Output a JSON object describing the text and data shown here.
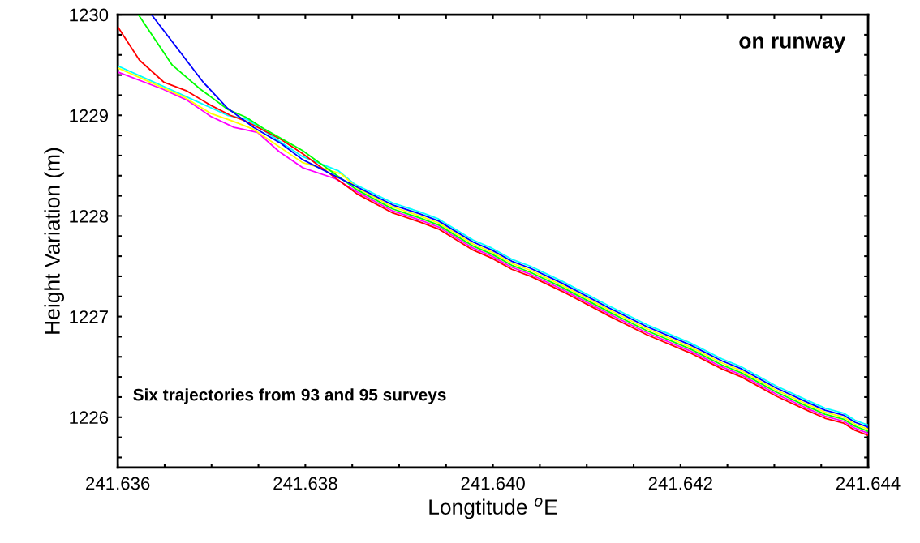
{
  "chart_data": {
    "type": "line",
    "xlabel": "Longtitude $^{o}$E",
    "ylabel": "Height Variation (m)",
    "annotations": [
      "on runway",
      "Six trajectories from 93 and 95 surveys"
    ],
    "xlim": [
      241.636,
      241.644
    ],
    "ylim": [
      1225.5,
      1230
    ],
    "xticks": [
      241.636,
      {
        "value": 241.6365,
        "label": null
      },
      {
        "value": 241.637,
        "label": null
      },
      {
        "value": 241.6375,
        "label": null
      },
      241.638,
      {
        "value": 241.6385,
        "label": null
      },
      {
        "value": 241.639,
        "label": null
      },
      {
        "value": 241.6395,
        "label": null
      },
      {
        "value": 241.64,
        "label": "241.640"
      },
      {
        "value": 241.6405,
        "label": null
      },
      {
        "value": 241.641,
        "label": null
      },
      {
        "value": 241.6415,
        "label": null
      },
      241.642,
      {
        "value": 241.6425,
        "label": null
      },
      {
        "value": 241.643,
        "label": null
      },
      {
        "value": 241.6435,
        "label": null
      },
      241.644
    ],
    "yticks": [
      {
        "value": 1225.6,
        "label": null
      },
      {
        "value": 1225.8,
        "label": null
      },
      1226,
      {
        "value": 1226.2,
        "label": null
      },
      {
        "value": 1226.4,
        "label": null
      },
      {
        "value": 1226.6,
        "label": null
      },
      {
        "value": 1226.8,
        "label": null
      },
      1227,
      {
        "value": 1227.2,
        "label": null
      },
      {
        "value": 1227.4,
        "label": null
      },
      {
        "value": 1227.6,
        "label": null
      },
      {
        "value": 1227.8,
        "label": null
      },
      1228,
      {
        "value": 1228.2,
        "label": null
      },
      {
        "value": 1228.4,
        "label": null
      },
      {
        "value": 1228.6,
        "label": null
      },
      {
        "value": 1228.8,
        "label": null
      },
      1229,
      {
        "value": 1229.2,
        "label": null
      },
      {
        "value": 1229.4,
        "label": null
      },
      {
        "value": 1229.6,
        "label": null
      },
      {
        "value": 1229.8,
        "label": null
      },
      1230
    ],
    "grid": false,
    "marker": "none",
    "line_style": "solid",
    "series": [
      {
        "color": "#0000ff",
        "x": [
          241.63636,
          241.63691,
          241.63717,
          241.63745,
          241.63774,
          241.63797,
          241.63893,
          241.63922,
          241.63942,
          241.63979,
          241.63999,
          241.6402,
          241.6404,
          241.64074,
          241.64123,
          241.64164,
          241.6421,
          241.64244,
          241.64265,
          241.64302,
          241.64337,
          241.64354,
          241.64374,
          241.64386,
          241.644
        ],
        "values": [
          1230.0,
          1229.33,
          1229.07,
          1228.88,
          1228.72,
          1228.56,
          1228.11,
          1228.02,
          1227.95,
          1227.74,
          1227.66,
          1227.55,
          1227.48,
          1227.33,
          1227.09,
          1226.9,
          1226.72,
          1226.56,
          1226.48,
          1226.29,
          1226.14,
          1226.07,
          1226.02,
          1225.95,
          1225.9
        ]
      },
      {
        "color": "#00ff00",
        "x": [
          241.63622,
          241.63658,
          241.63688,
          241.63717,
          241.63737,
          241.63757,
          241.63797,
          241.63855,
          241.63893,
          241.63922,
          241.63942,
          241.63979,
          241.63999,
          241.6402,
          241.6404,
          241.64074,
          241.64123,
          241.64164,
          241.6421,
          241.64244,
          241.64265,
          241.64302,
          241.64337,
          241.64354,
          241.64374,
          241.64386,
          241.644
        ],
        "values": [
          1230.0,
          1229.5,
          1229.26,
          1229.06,
          1228.98,
          1228.86,
          1228.65,
          1228.26,
          1228.07,
          1227.98,
          1227.91,
          1227.7,
          1227.62,
          1227.51,
          1227.44,
          1227.29,
          1227.05,
          1226.86,
          1226.68,
          1226.52,
          1226.44,
          1226.25,
          1226.1,
          1226.03,
          1225.98,
          1225.91,
          1225.86
        ]
      },
      {
        "color": "#ff0000",
        "x": [
          241.636,
          241.63623,
          241.63649,
          241.63674,
          241.63697,
          241.6372,
          241.63737,
          241.63774,
          241.63797,
          241.63855,
          241.63893,
          241.63922,
          241.63942,
          241.63979,
          241.63999,
          241.6402,
          241.6404,
          241.64074,
          241.64123,
          241.64164,
          241.6421,
          241.64244,
          241.64265,
          241.64302,
          241.64337,
          241.64354,
          241.64374,
          241.64386,
          241.644
        ],
        "values": [
          1229.88,
          1229.55,
          1229.33,
          1229.24,
          1229.11,
          1229.0,
          1228.94,
          1228.76,
          1228.62,
          1228.22,
          1228.03,
          1227.94,
          1227.87,
          1227.66,
          1227.58,
          1227.47,
          1227.4,
          1227.25,
          1227.01,
          1226.82,
          1226.64,
          1226.48,
          1226.4,
          1226.21,
          1226.06,
          1225.99,
          1225.94,
          1225.87,
          1225.82
        ]
      },
      {
        "color": "#ffff00",
        "x": [
          241.636,
          241.63671,
          241.63699,
          241.63723,
          241.63745,
          241.63797,
          241.63838,
          241.63855,
          241.63893,
          241.63922,
          241.63942,
          241.63979,
          241.63999,
          241.6402,
          241.6404,
          241.64074,
          241.64123,
          241.64164,
          241.6421,
          241.64244,
          241.64265,
          241.64302,
          241.64337,
          241.64354,
          241.64374,
          241.64386,
          241.644
        ],
        "values": [
          1229.47,
          1229.18,
          1229.02,
          1228.94,
          1228.86,
          1228.53,
          1228.42,
          1228.28,
          1228.09,
          1228.0,
          1227.93,
          1227.72,
          1227.64,
          1227.53,
          1227.46,
          1227.31,
          1227.07,
          1226.88,
          1226.7,
          1226.54,
          1226.46,
          1226.27,
          1226.12,
          1226.05,
          1226.0,
          1225.93,
          1225.88
        ]
      },
      {
        "color": "#ff00ff",
        "x": [
          241.636,
          241.63648,
          241.63674,
          241.63699,
          241.63724,
          241.63749,
          241.63772,
          241.63797,
          241.63832,
          241.63855,
          241.63893,
          241.63922,
          241.63942,
          241.63979,
          241.63999,
          241.6402,
          241.6404,
          241.64074,
          241.64123,
          241.64164,
          241.6421,
          241.64244,
          241.64265,
          241.64302,
          241.64337,
          241.64354,
          241.64374,
          241.64386,
          241.644
        ],
        "values": [
          1229.43,
          1229.26,
          1229.15,
          1228.99,
          1228.88,
          1228.83,
          1228.64,
          1228.48,
          1228.37,
          1228.24,
          1228.05,
          1227.96,
          1227.89,
          1227.68,
          1227.6,
          1227.49,
          1227.42,
          1227.27,
          1227.03,
          1226.84,
          1226.66,
          1226.5,
          1226.42,
          1226.23,
          1226.08,
          1226.01,
          1225.96,
          1225.89,
          1225.84
        ]
      },
      {
        "color": "#00ffff",
        "x": [
          241.636,
          241.63667,
          241.63717,
          241.63738,
          241.63757,
          241.63797,
          241.63835,
          241.63852,
          241.63893,
          241.63922,
          241.63942,
          241.63979,
          241.63999,
          241.6402,
          241.6404,
          241.64074,
          241.64123,
          241.64164,
          241.6421,
          241.64244,
          241.64265,
          241.64302,
          241.64337,
          241.64354,
          241.64374,
          241.64386,
          241.644
        ],
        "values": [
          1229.49,
          1229.21,
          1229.0,
          1228.96,
          1228.84,
          1228.59,
          1228.45,
          1228.32,
          1228.13,
          1228.04,
          1227.97,
          1227.76,
          1227.68,
          1227.57,
          1227.5,
          1227.35,
          1227.11,
          1226.92,
          1226.74,
          1226.58,
          1226.5,
          1226.31,
          1226.16,
          1226.09,
          1226.04,
          1225.97,
          1225.92
        ]
      }
    ]
  }
}
